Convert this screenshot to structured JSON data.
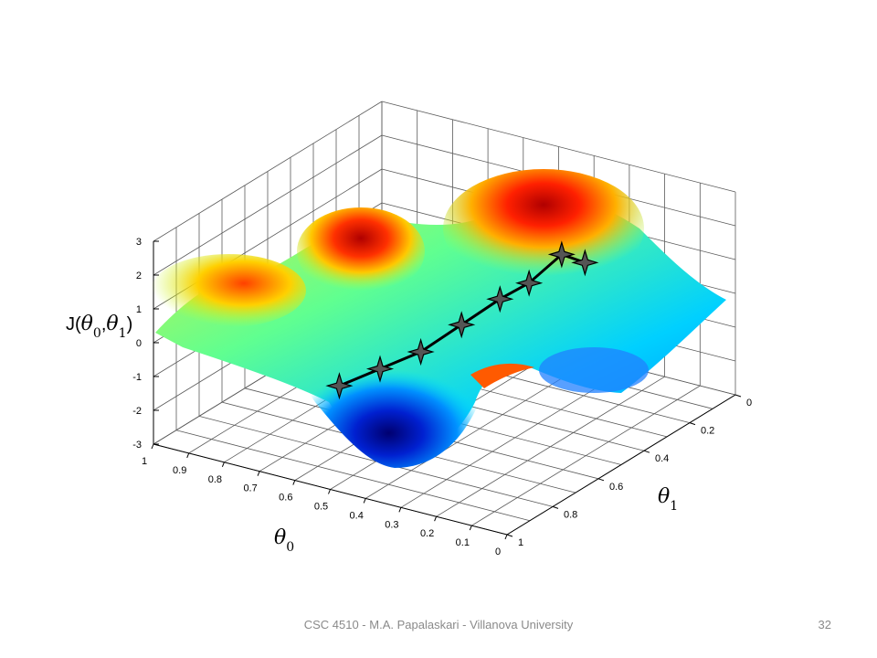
{
  "chart_data": {
    "type": "surface",
    "surface_colormap": "jet",
    "grid": true,
    "axes": {
      "x": {
        "label": "θ0",
        "label_parts": [
          "θ",
          "0"
        ],
        "range": [
          0,
          1
        ],
        "ticks": [
          "0",
          "0.1",
          "0.2",
          "0.3",
          "0.4",
          "0.5",
          "0.6",
          "0.7",
          "0.8",
          "0.9",
          "1"
        ]
      },
      "y": {
        "label": "θ1",
        "label_parts": [
          "θ",
          "1"
        ],
        "range": [
          0,
          1
        ],
        "ticks": [
          "0",
          "0.2",
          "0.4",
          "0.6",
          "0.8",
          "1"
        ]
      },
      "z": {
        "label": "J(θ0,θ1)",
        "label_parts": [
          "J(",
          "θ",
          "0",
          ",",
          "θ",
          "1",
          ")"
        ],
        "range": [
          -3,
          3
        ],
        "ticks": [
          "3",
          "2",
          "1",
          "0",
          "-1",
          "-2",
          "-3"
        ]
      }
    },
    "descent_path": {
      "marker": "star",
      "color": "#000000",
      "points": [
        {
          "theta0": 0.18,
          "theta1": 0.38,
          "J": 2.0
        },
        {
          "theta0": 0.22,
          "theta1": 0.42,
          "J": 2.3
        },
        {
          "theta0": 0.28,
          "theta1": 0.47,
          "J": 1.5
        },
        {
          "theta0": 0.33,
          "theta1": 0.52,
          "J": 1.1
        },
        {
          "theta0": 0.4,
          "theta1": 0.58,
          "J": 0.4
        },
        {
          "theta0": 0.47,
          "theta1": 0.65,
          "J": -0.3
        },
        {
          "theta0": 0.54,
          "theta1": 0.72,
          "J": -0.7
        },
        {
          "theta0": 0.61,
          "theta1": 0.79,
          "J": -1.1
        }
      ]
    }
  },
  "footer": {
    "text": "CSC 4510 - M.A. Papalaskari - Villanova University",
    "page": "32"
  }
}
